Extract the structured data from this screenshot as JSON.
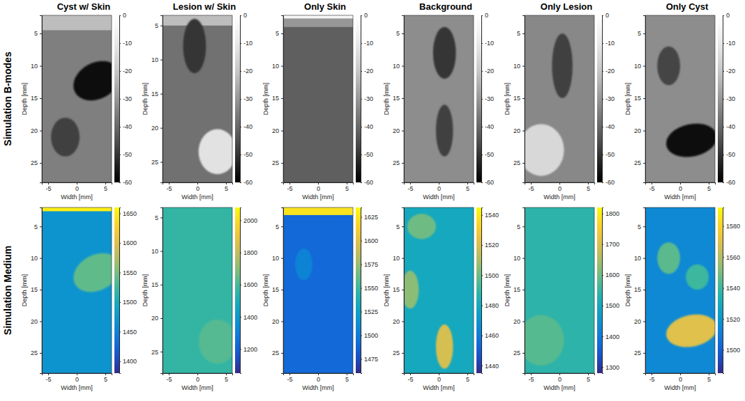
{
  "figure": {
    "row_titles": [
      "Simulation B-modes",
      "Simulation Medium"
    ]
  },
  "chart_data": [
    {
      "type": "heatmap",
      "title": "Cyst w/ Skin",
      "color": "gray",
      "xlabel": "Width [mm]",
      "ylabel": "Depth [mm]",
      "xlim": [
        -6.1,
        6.1
      ],
      "ylim": [
        2.2,
        28
      ],
      "xticks": [
        -5,
        0,
        5
      ],
      "yticks": [
        5,
        10,
        15,
        20,
        25
      ],
      "clim": [
        -60,
        0
      ],
      "cticks": [
        0,
        -10,
        -20,
        -30,
        -40,
        -50,
        -60
      ],
      "background": -35,
      "regions": [
        {
          "shape": "band",
          "y0": 2.2,
          "y1": 4.5,
          "value": -22
        },
        {
          "shape": "ellipse",
          "cx": -2,
          "cy": 21,
          "rx": 2.5,
          "ry": 3,
          "angle": 0,
          "value": -48
        },
        {
          "shape": "ellipse",
          "cx": 3.5,
          "cy": 12.3,
          "rx": 4.3,
          "ry": 2.8,
          "angle": -28,
          "value": -58
        }
      ]
    },
    {
      "type": "heatmap",
      "title": "Lesion w/ Skin",
      "color": "gray",
      "xlabel": "Width [mm]",
      "ylabel": "Depth [mm]",
      "xlim": [
        -6.1,
        6.1
      ],
      "ylim": [
        3.5,
        28
      ],
      "xticks": [
        -5,
        0,
        5
      ],
      "yticks": [
        5,
        10,
        15,
        20,
        25
      ],
      "clim": [
        -60,
        0
      ],
      "cticks": [
        0,
        -10,
        -20,
        -30,
        -40,
        -50,
        -60
      ],
      "background": -38,
      "regions": [
        {
          "shape": "band",
          "y0": 3.5,
          "y1": 5,
          "value": -22
        },
        {
          "shape": "ellipse",
          "cx": -0.5,
          "cy": 8,
          "rx": 2,
          "ry": 4,
          "angle": 0,
          "value": -50
        },
        {
          "shape": "ellipse",
          "cx": 3.5,
          "cy": 23.5,
          "rx": 3.3,
          "ry": 3.3,
          "angle": 0,
          "value": -12
        }
      ]
    },
    {
      "type": "heatmap",
      "title": "Only Skin",
      "color": "gray",
      "xlabel": "Width [mm]",
      "ylabel": "Depth [mm]",
      "xlim": [
        -6.1,
        6.1
      ],
      "ylim": [
        2.2,
        28
      ],
      "xticks": [
        -5,
        0,
        5
      ],
      "yticks": [
        5,
        10,
        15,
        20,
        25
      ],
      "clim": [
        -60,
        0
      ],
      "cticks": [
        0,
        -10,
        -20,
        -30,
        -40,
        -50,
        -60
      ],
      "background": -42,
      "regions": [
        {
          "shape": "band",
          "y0": 2.7,
          "y1": 4,
          "value": -30
        },
        {
          "shape": "band",
          "y0": 2.2,
          "y1": 2.7,
          "value": -5
        }
      ]
    },
    {
      "type": "heatmap",
      "title": "Background",
      "color": "gray",
      "xlabel": "Width [mm]",
      "ylabel": "Depth [mm]",
      "xlim": [
        -6.1,
        6.1
      ],
      "ylim": [
        2.2,
        28
      ],
      "xticks": [
        -5,
        0,
        5
      ],
      "yticks": [
        5,
        10,
        15,
        20,
        25
      ],
      "clim": [
        -60,
        0
      ],
      "cticks": [
        0,
        -10,
        -20,
        -30,
        -40,
        -50,
        -60
      ],
      "background": -32,
      "regions": [
        {
          "shape": "ellipse",
          "cx": 1,
          "cy": 8,
          "rx": 2,
          "ry": 4,
          "angle": 0,
          "value": -50
        },
        {
          "shape": "ellipse",
          "cx": 1,
          "cy": 20,
          "rx": 1.5,
          "ry": 4,
          "angle": 0,
          "value": -48
        }
      ]
    },
    {
      "type": "heatmap",
      "title": "Only Lesion",
      "color": "gray",
      "xlabel": "Width [mm]",
      "ylabel": "Depth [mm]",
      "xlim": [
        -6.1,
        6.1
      ],
      "ylim": [
        2.2,
        28
      ],
      "xticks": [
        -5,
        0,
        5
      ],
      "yticks": [
        5,
        10,
        15,
        20,
        25
      ],
      "clim": [
        -60,
        0
      ],
      "cticks": [
        0,
        -10,
        -20,
        -30,
        -40,
        -50,
        -60
      ],
      "background": -33,
      "regions": [
        {
          "shape": "ellipse",
          "cx": 0.5,
          "cy": 10,
          "rx": 1.8,
          "ry": 5,
          "angle": 0,
          "value": -48
        },
        {
          "shape": "ellipse",
          "cx": -3.2,
          "cy": 23,
          "rx": 4,
          "ry": 4,
          "angle": 0,
          "value": -15
        }
      ]
    },
    {
      "type": "heatmap",
      "title": "Only Cyst",
      "color": "gray",
      "xlabel": "Width [mm]",
      "ylabel": "Depth [mm]",
      "xlim": [
        -6.1,
        6.1
      ],
      "ylim": [
        2.2,
        28
      ],
      "xticks": [
        -5,
        0,
        5
      ],
      "yticks": [
        5,
        10,
        15,
        20,
        25
      ],
      "clim": [
        -60,
        0
      ],
      "cticks": [
        0,
        -10,
        -20,
        -30,
        -40,
        -50,
        -60
      ],
      "background": -32,
      "regions": [
        {
          "shape": "ellipse",
          "cx": -2,
          "cy": 10,
          "rx": 2,
          "ry": 3,
          "angle": 0,
          "value": -47
        },
        {
          "shape": "ellipse",
          "cx": 2,
          "cy": 21.5,
          "rx": 4.5,
          "ry": 2.5,
          "angle": -12,
          "value": -58
        }
      ]
    },
    {
      "type": "heatmap",
      "color": "parula",
      "xlabel": "Width [mm]",
      "ylabel": "Depth [mm]",
      "xlim": [
        -6.1,
        6.1
      ],
      "ylim": [
        2,
        28.2
      ],
      "xticks": [
        -5,
        0,
        5
      ],
      "yticks": [
        5,
        10,
        15,
        20,
        25
      ],
      "clim": [
        1380,
        1660
      ],
      "cticks": [
        1400,
        1450,
        1500,
        1550,
        1600,
        1650
      ],
      "background": 1470,
      "regions": [
        {
          "shape": "band",
          "y0": 2,
          "y1": 2.6,
          "value": 1650
        },
        {
          "shape": "ellipse",
          "cx": 3.5,
          "cy": 12.3,
          "rx": 4.3,
          "ry": 2.8,
          "angle": -28,
          "value": 1540
        }
      ]
    },
    {
      "type": "heatmap",
      "color": "parula",
      "xlabel": "Width [mm]",
      "ylabel": "Depth [mm]",
      "xlim": [
        -6.1,
        6.1
      ],
      "ylim": [
        3.5,
        28.2
      ],
      "xticks": [
        -5,
        0,
        5
      ],
      "yticks": [
        5,
        10,
        15,
        20,
        25
      ],
      "clim": [
        1050,
        2080
      ],
      "cticks": [
        1200,
        1400,
        1600,
        1800,
        2000
      ],
      "background": 1560,
      "regions": [
        {
          "shape": "ellipse",
          "cx": 3.5,
          "cy": 23.5,
          "rx": 3.3,
          "ry": 3.3,
          "angle": 0,
          "value": 1620
        }
      ]
    },
    {
      "type": "heatmap",
      "color": "parula",
      "xlabel": "Width [mm]",
      "ylabel": "Depth [mm]",
      "xlim": [
        -6.1,
        6.1
      ],
      "ylim": [
        2,
        28.2
      ],
      "xticks": [
        -5,
        0,
        5
      ],
      "yticks": [
        5,
        10,
        15,
        20,
        25
      ],
      "clim": [
        1460,
        1635
      ],
      "cticks": [
        1475,
        1500,
        1525,
        1550,
        1575,
        1600,
        1625
      ],
      "background": 1490,
      "regions": [
        {
          "shape": "ellipse",
          "cx": -2.5,
          "cy": 11,
          "rx": 1.5,
          "ry": 2.5,
          "angle": 0,
          "value": 1505
        },
        {
          "shape": "band",
          "y0": 2,
          "y1": 3.2,
          "value": 1625
        }
      ]
    },
    {
      "type": "heatmap",
      "color": "parula",
      "xlabel": "Width [mm]",
      "ylabel": "Depth [mm]",
      "xlim": [
        -6.1,
        6.1
      ],
      "ylim": [
        2,
        28.2
      ],
      "xticks": [
        -5,
        0,
        5
      ],
      "yticks": [
        5,
        10,
        15,
        20,
        25
      ],
      "clim": [
        1435,
        1545
      ],
      "cticks": [
        1440,
        1460,
        1480,
        1500,
        1520,
        1540
      ],
      "background": 1480,
      "regions": [
        {
          "shape": "ellipse",
          "cx": -3,
          "cy": 5,
          "rx": 2.5,
          "ry": 2,
          "angle": 0,
          "value": 1500
        },
        {
          "shape": "ellipse",
          "cx": -5,
          "cy": 15,
          "rx": 1.5,
          "ry": 3,
          "angle": 0,
          "value": 1505
        },
        {
          "shape": "ellipse",
          "cx": 1,
          "cy": 24,
          "rx": 1.5,
          "ry": 3.5,
          "angle": 0,
          "value": 1520
        }
      ]
    },
    {
      "type": "heatmap",
      "color": "parula",
      "xlabel": "Width [mm]",
      "ylabel": "Depth [mm]",
      "xlim": [
        -6.1,
        6.1
      ],
      "ylim": [
        2,
        28.2
      ],
      "xticks": [
        -5,
        0,
        5
      ],
      "yticks": [
        5,
        10,
        15,
        20,
        25
      ],
      "clim": [
        1280,
        1820
      ],
      "cticks": [
        1300,
        1400,
        1500,
        1600,
        1700,
        1800
      ],
      "background": 1540,
      "regions": [
        {
          "shape": "ellipse",
          "cx": -3.2,
          "cy": 23,
          "rx": 4,
          "ry": 4,
          "angle": 0,
          "value": 1580
        }
      ]
    },
    {
      "type": "heatmap",
      "color": "parula",
      "xlabel": "Width [mm]",
      "ylabel": "Depth [mm]",
      "xlim": [
        -6.1,
        6.1
      ],
      "ylim": [
        2,
        28.2
      ],
      "xticks": [
        -5,
        0,
        5
      ],
      "yticks": [
        5,
        10,
        15,
        20,
        25
      ],
      "clim": [
        1485,
        1592
      ],
      "cticks": [
        1500,
        1520,
        1540,
        1560,
        1580
      ],
      "background": 1515,
      "regions": [
        {
          "shape": "ellipse",
          "cx": -2,
          "cy": 10,
          "rx": 2,
          "ry": 2.5,
          "angle": 0,
          "value": 1545
        },
        {
          "shape": "ellipse",
          "cx": 3,
          "cy": 13,
          "rx": 2,
          "ry": 2,
          "angle": 0,
          "value": 1540
        },
        {
          "shape": "ellipse",
          "cx": 2,
          "cy": 21.5,
          "rx": 4.5,
          "ry": 2.5,
          "angle": -12,
          "value": 1570
        }
      ]
    }
  ]
}
